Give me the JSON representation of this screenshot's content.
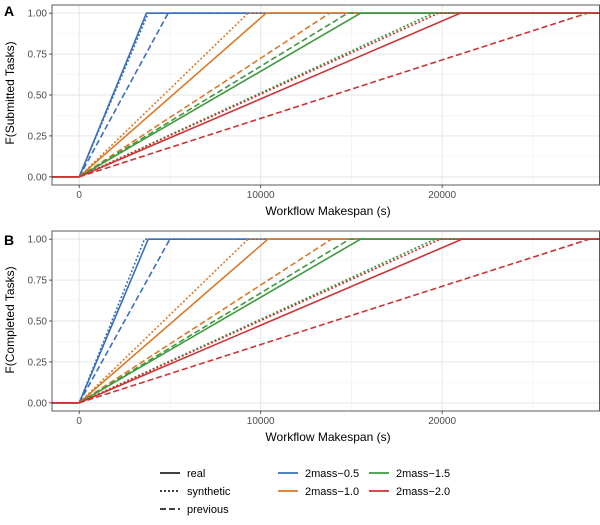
{
  "chart_data": [
    {
      "type": "line",
      "tag": "A",
      "xlabel": "Workflow Makespan (s)",
      "ylabel": "F(Submitted Tasks)",
      "xlim": [
        -1500,
        28700
      ],
      "ylim": [
        -0.05,
        1.05
      ],
      "x_ticks": [
        0,
        10000,
        20000
      ],
      "x_tick_labels": [
        "0",
        "10000",
        "20000"
      ],
      "y_ticks": [
        0,
        0.25,
        0.5,
        0.75,
        1.0
      ],
      "y_tick_labels": [
        "0.00",
        "0.25",
        "0.50",
        "0.75",
        "1.00"
      ],
      "grid": true,
      "series": [
        {
          "name": "2mass-0.5",
          "style": "real",
          "x": [
            -1500,
            0,
            3700,
            28700
          ],
          "y": [
            0,
            0,
            1,
            1
          ]
        },
        {
          "name": "2mass-0.5",
          "style": "synthetic",
          "x": [
            -1500,
            0,
            3800,
            28700
          ],
          "y": [
            0,
            0,
            1,
            1
          ]
        },
        {
          "name": "2mass-0.5",
          "style": "previous",
          "x": [
            -1500,
            0,
            4900,
            28700
          ],
          "y": [
            0,
            0,
            1,
            1
          ]
        },
        {
          "name": "2mass-1.0",
          "style": "real",
          "x": [
            -1500,
            0,
            10300,
            28700
          ],
          "y": [
            0,
            0,
            1,
            1
          ]
        },
        {
          "name": "2mass-1.0",
          "style": "synthetic",
          "x": [
            -1500,
            0,
            9300,
            28700
          ],
          "y": [
            0,
            0,
            1,
            1
          ]
        },
        {
          "name": "2mass-1.0",
          "style": "previous",
          "x": [
            -1500,
            0,
            13800,
            28700
          ],
          "y": [
            0,
            0,
            1,
            1
          ]
        },
        {
          "name": "2mass-1.5",
          "style": "real",
          "x": [
            -1500,
            0,
            15500,
            28700
          ],
          "y": [
            0,
            0,
            1,
            1
          ]
        },
        {
          "name": "2mass-1.5",
          "style": "synthetic",
          "x": [
            -1500,
            0,
            19500,
            28700
          ],
          "y": [
            0,
            0,
            1,
            1
          ]
        },
        {
          "name": "2mass-1.5",
          "style": "previous",
          "x": [
            -1500,
            0,
            14800,
            28700
          ],
          "y": [
            0,
            0,
            1,
            1
          ]
        },
        {
          "name": "2mass-2.0",
          "style": "real",
          "x": [
            -1500,
            0,
            21000,
            28700
          ],
          "y": [
            0,
            0,
            1,
            1
          ]
        },
        {
          "name": "2mass-2.0",
          "style": "synthetic",
          "x": [
            -1500,
            0,
            19800,
            28700
          ],
          "y": [
            0,
            0,
            1,
            1
          ]
        },
        {
          "name": "2mass-2.0",
          "style": "previous",
          "x": [
            -1500,
            0,
            28000,
            28700
          ],
          "y": [
            0,
            0,
            1,
            1
          ]
        }
      ]
    },
    {
      "type": "line",
      "tag": "B",
      "xlabel": "Workflow Makespan (s)",
      "ylabel": "F(Completed Tasks)",
      "xlim": [
        -1500,
        28700
      ],
      "ylim": [
        -0.05,
        1.05
      ],
      "x_ticks": [
        0,
        10000,
        20000
      ],
      "x_tick_labels": [
        "0",
        "10000",
        "20000"
      ],
      "y_ticks": [
        0,
        0.25,
        0.5,
        0.75,
        1.0
      ],
      "y_tick_labels": [
        "0.00",
        "0.25",
        "0.50",
        "0.75",
        "1.00"
      ],
      "grid": true,
      "series": [
        {
          "name": "2mass-0.5",
          "style": "real",
          "x": [
            -1500,
            0,
            3800,
            28700
          ],
          "y": [
            0,
            0,
            1,
            1
          ]
        },
        {
          "name": "2mass-0.5",
          "style": "synthetic",
          "x": [
            -1500,
            0,
            3600,
            28700
          ],
          "y": [
            0,
            0,
            1,
            1
          ]
        },
        {
          "name": "2mass-0.5",
          "style": "previous",
          "x": [
            -1500,
            0,
            5000,
            28700
          ],
          "y": [
            0,
            0,
            1,
            1
          ]
        },
        {
          "name": "2mass-1.0",
          "style": "real",
          "x": [
            -1500,
            0,
            10400,
            28700
          ],
          "y": [
            0,
            0,
            1,
            1
          ]
        },
        {
          "name": "2mass-1.0",
          "style": "synthetic",
          "x": [
            -1500,
            0,
            9300,
            28700
          ],
          "y": [
            0,
            0,
            1,
            1
          ]
        },
        {
          "name": "2mass-1.0",
          "style": "previous",
          "x": [
            -1500,
            0,
            13900,
            28700
          ],
          "y": [
            0,
            0,
            1,
            1
          ]
        },
        {
          "name": "2mass-1.5",
          "style": "real",
          "x": [
            -1500,
            0,
            15500,
            28700
          ],
          "y": [
            0,
            0,
            1,
            1
          ]
        },
        {
          "name": "2mass-1.5",
          "style": "synthetic",
          "x": [
            -1500,
            0,
            19600,
            28700
          ],
          "y": [
            0,
            0,
            1,
            1
          ]
        },
        {
          "name": "2mass-1.5",
          "style": "previous",
          "x": [
            -1500,
            0,
            14900,
            28700
          ],
          "y": [
            0,
            0,
            1,
            1
          ]
        },
        {
          "name": "2mass-2.0",
          "style": "real",
          "x": [
            -1500,
            0,
            21100,
            28700
          ],
          "y": [
            0,
            0,
            1,
            1
          ]
        },
        {
          "name": "2mass-2.0",
          "style": "synthetic",
          "x": [
            -1500,
            0,
            19900,
            28700
          ],
          "y": [
            0,
            0,
            1,
            1
          ]
        },
        {
          "name": "2mass-2.0",
          "style": "previous",
          "x": [
            -1500,
            0,
            28100,
            28700
          ],
          "y": [
            0,
            0,
            1,
            1
          ]
        }
      ]
    }
  ],
  "legend": {
    "placement": "bottom",
    "linetypes": [
      {
        "label": "real",
        "dash": "solid"
      },
      {
        "label": "synthetic",
        "dash": "dotted"
      },
      {
        "label": "previous",
        "dash": "dashed"
      }
    ],
    "colors": [
      {
        "label": "2mass−0.5",
        "color": "#3a6fb8"
      },
      {
        "label": "2mass−1.0",
        "color": "#d97a2b"
      },
      {
        "label": "2mass−1.5",
        "color": "#3f9a3f"
      },
      {
        "label": "2mass−2.0",
        "color": "#cc3333"
      }
    ]
  },
  "colors": {
    "2mass-0.5": "#3a6fb8",
    "2mass-1.0": "#d97a2b",
    "2mass-1.5": "#3f9a3f",
    "2mass-2.0": "#cc3333",
    "grid_major": "#e6e6e6",
    "grid_minor": "#f2f2f2",
    "panel_border": "#333333"
  }
}
